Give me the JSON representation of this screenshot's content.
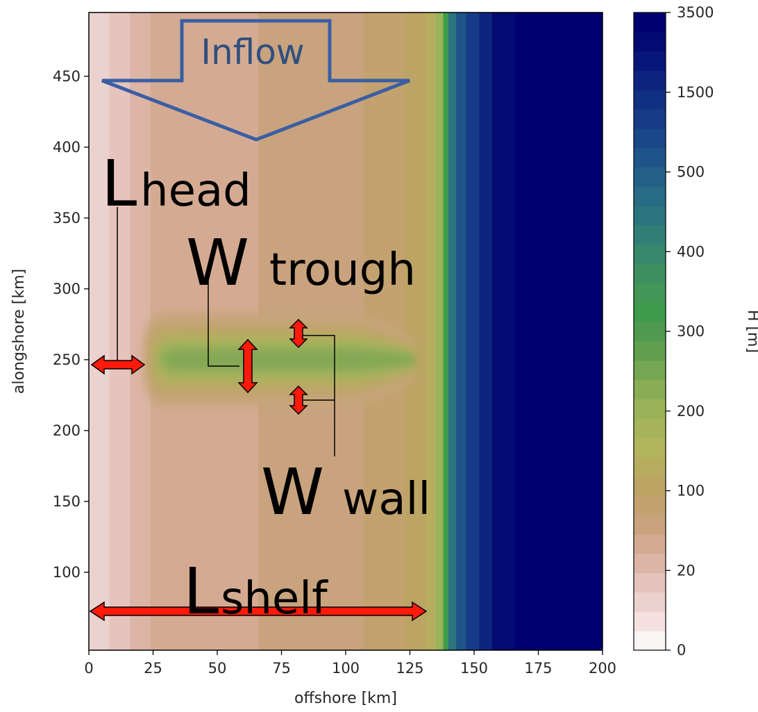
{
  "chart_data": {
    "type": "heatmap",
    "title": "",
    "xlabel": "offshore [km]",
    "ylabel": "alongshore [km]",
    "xlim": [
      0,
      200
    ],
    "ylim": [
      45,
      495
    ],
    "xticks": [
      0,
      25,
      50,
      75,
      100,
      125,
      150,
      175,
      200
    ],
    "yticks": [
      100,
      150,
      200,
      250,
      300,
      350,
      400,
      450
    ],
    "colorbar": {
      "label": "H [m]",
      "ticks": [
        0,
        20,
        100,
        200,
        300,
        400,
        500,
        1500,
        3500
      ],
      "levels": [
        "#fbf6f6",
        "#f4e1e0",
        "#ecd2cf",
        "#e6c4bd",
        "#dcb5a6",
        "#d4ab92",
        "#c9a37e",
        "#c3a26f",
        "#bca464",
        "#b8ad5f",
        "#b3b45e",
        "#a7b45b",
        "#99b358",
        "#89ad55",
        "#75a651",
        "#5f9f4e",
        "#4e9a4e",
        "#3f9b4c",
        "#449656",
        "#3d8f60",
        "#36876c",
        "#317e76",
        "#2c747e",
        "#276b84",
        "#236088",
        "#1e548a",
        "#1a478a",
        "#163b87",
        "#123083",
        "#0d247f",
        "#081679",
        "#040a73",
        "#000070"
      ]
    },
    "bathymetry": {
      "offshore_bands_km": [
        0,
        8,
        16,
        24,
        66,
        107,
        123,
        131,
        135,
        138,
        140,
        143,
        147,
        152,
        157,
        166,
        200
      ],
      "band_colors": [
        "#ecd2cf",
        "#e6c4bd",
        "#dcb5a6",
        "#d4ab92",
        "#c9a37e",
        "#c3a26f",
        "#bca464",
        "#b8ad5f",
        "#99b358",
        "#3f9b4c",
        "#2c747e",
        "#1e548a",
        "#163b87",
        "#0d247f",
        "#040a73",
        "#000070"
      ],
      "trough_center_km": 250,
      "trough_head_km": 21,
      "trough_outer_edge_km": 100
    },
    "annotations": {
      "inflow": "Inflow",
      "l_head": {
        "big": "L",
        "small": "head"
      },
      "w_trough": {
        "big": "W",
        "small": "trough"
      },
      "w_wall": {
        "big": "W",
        "small": "wall"
      },
      "l_shelf": {
        "big": "L",
        "small": "shelf"
      }
    }
  }
}
